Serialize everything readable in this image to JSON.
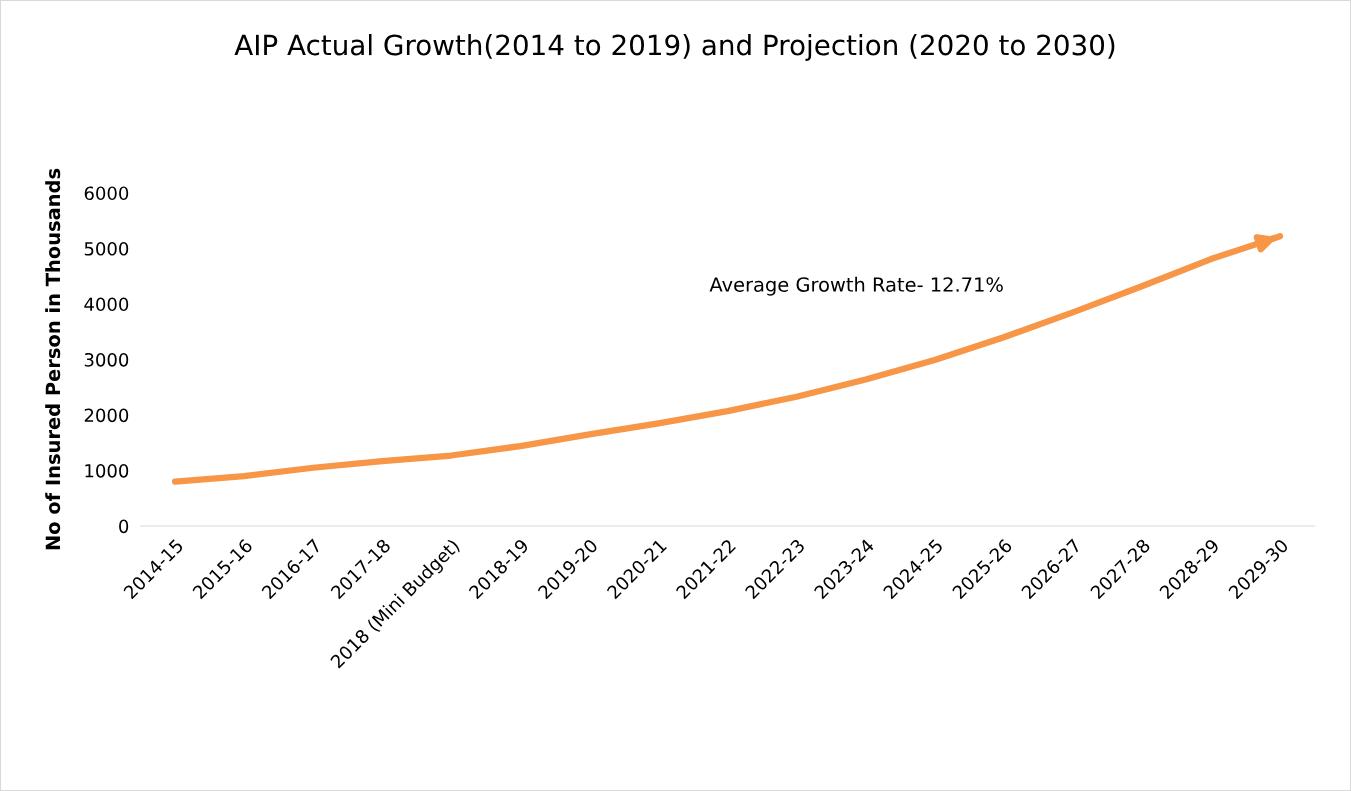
{
  "chart_data": {
    "type": "line",
    "title": "AIP Actual Growth(2014 to 2019) and Projection (2020 to 2030)",
    "ylabel": "No of Insured Person in Thousands",
    "categories": [
      "2014-15",
      "2015-16",
      "2016-17",
      "2017-18",
      "2018 (Mini Budget)",
      "2018-19",
      "2019-20",
      "2020-21",
      "2021-22",
      "2022-23",
      "2023-24",
      "2024-25",
      "2025-26",
      "2026-27",
      "2027-28",
      "2028-29",
      "2029-30"
    ],
    "series": [
      {
        "color": "#f79646",
        "values": [
          800,
          900,
          1050,
          1170,
          1270,
          1440,
          1650,
          1850,
          2070,
          2330,
          2640,
          2990,
          3400,
          3850,
          4320,
          4810,
          5220
        ]
      }
    ],
    "ylim": [
      0,
      6000
    ],
    "yticks": [
      0,
      1000,
      2000,
      3000,
      4000,
      5000,
      6000
    ],
    "annotations": [
      "Average Growth Rate- 12.71%"
    ],
    "grid": false,
    "marker": "none",
    "line_style": "solid"
  }
}
